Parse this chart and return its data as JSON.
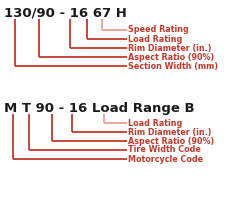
{
  "title1": "130/90 - 16 67 H",
  "title2": "M T 90 - 16 Load Range B",
  "labels1": [
    "Speed Rating",
    "Load Rating",
    "Rim Diameter (in.)",
    "Aspect Ratio (90%)",
    "Section Width (mm)"
  ],
  "labels2": [
    "Load Rating",
    "Rim Diameter (in.)",
    "Aspect Ratio (90%)",
    "Tire Width Code",
    "Motorcycle Code"
  ],
  "line_color": "#c0392b",
  "line_color_light": "#e8a090",
  "title_color": "#1a1a1a",
  "label_color": "#c0392b",
  "bg_color": "#ffffff"
}
